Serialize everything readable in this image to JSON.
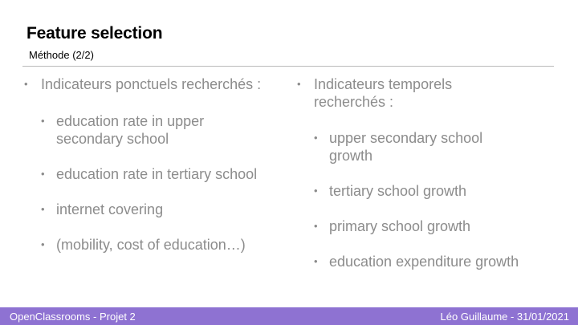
{
  "slide": {
    "title": "Feature selection",
    "subtitle": "Méthode (2/2)"
  },
  "left_column": {
    "heading": "Indicateurs ponctuels recherchés :",
    "items": [
      "education rate in upper secondary school",
      "education rate in tertiary school",
      "internet covering",
      "(mobility, cost of education…)"
    ]
  },
  "right_column": {
    "heading": "Indicateurs temporels recherchés :",
    "items": [
      "upper secondary school growth",
      "tertiary school growth",
      "primary school growth",
      "education expenditure growth"
    ]
  },
  "footer": {
    "left": "OpenClassrooms - Projet 2",
    "right": "Léo Guillaume - 31/01/2021"
  },
  "bullet_glyph": "•",
  "colors": {
    "footer_bar": "#8e72d2",
    "body_text": "#8c8c8c",
    "rule": "#b9b9b9"
  }
}
